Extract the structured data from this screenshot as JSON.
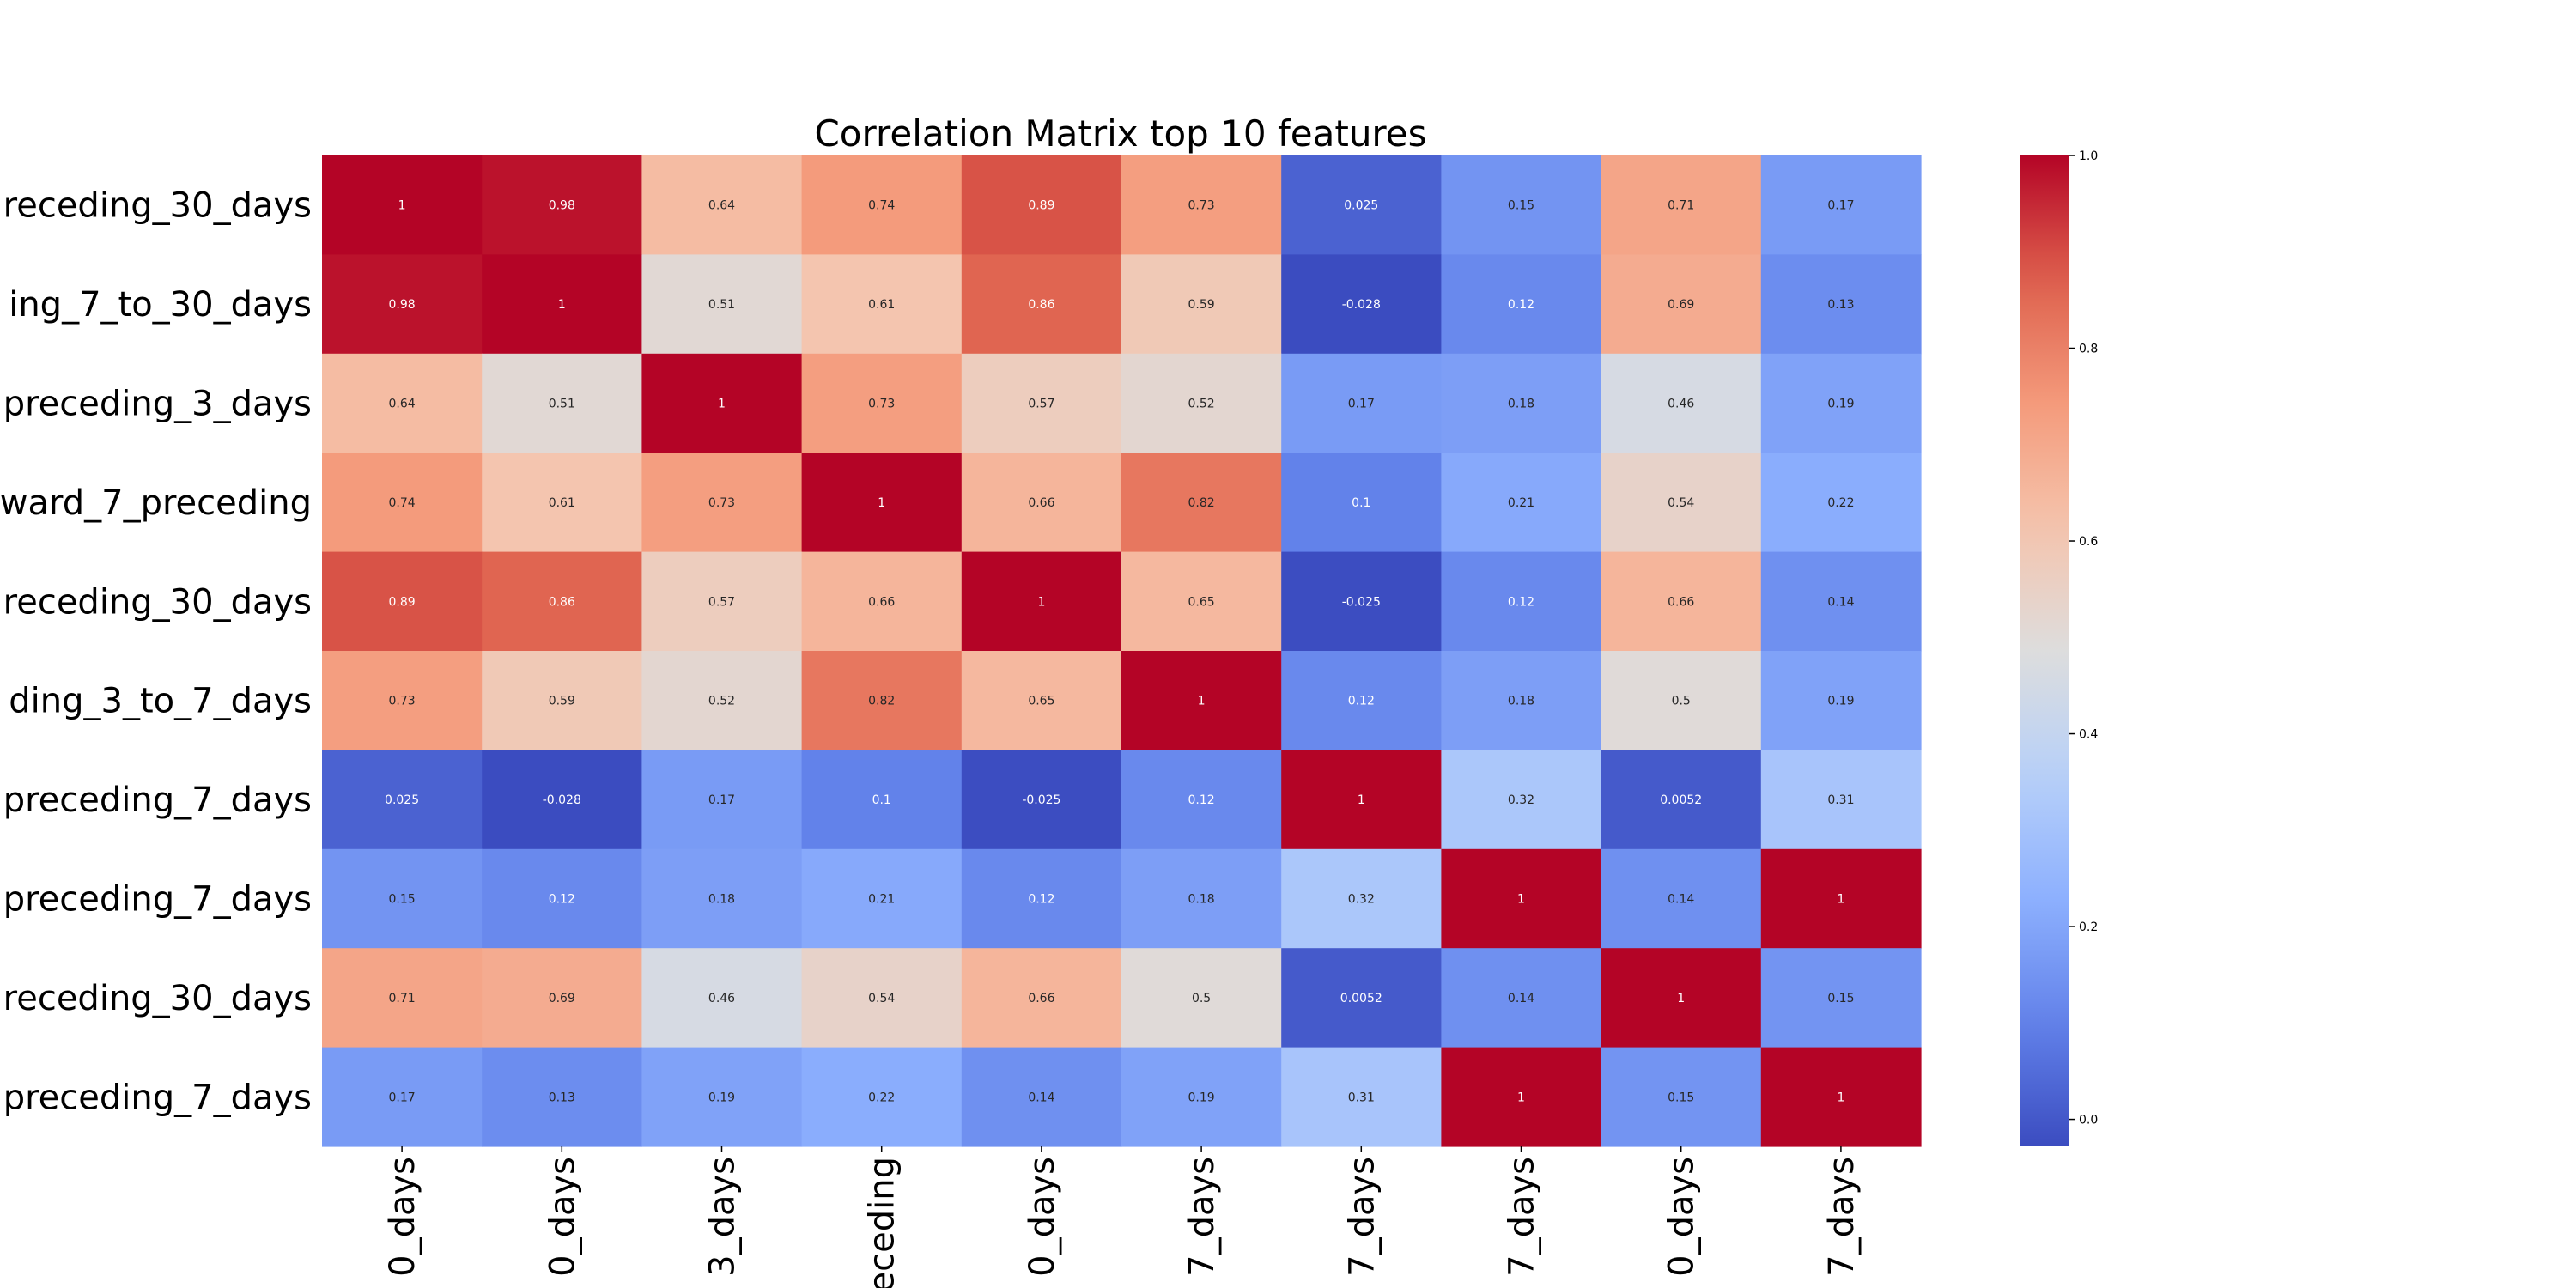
{
  "chart_data": {
    "type": "heatmap",
    "title": "Correlation Matrix top 10 features",
    "row_labels": [
      "receding_30_days",
      "ing_7_to_30_days",
      "preceding_3_days",
      "ward_7_preceding",
      "receding_30_days",
      "ding_3_to_7_days",
      "preceding_7_days",
      "preceding_7_days",
      "receding_30_days",
      "preceding_7_days"
    ],
    "col_labels": [
      "0_days",
      "0_days",
      "3_days",
      "eceding",
      "0_days",
      "7_days",
      "7_days",
      "7_days",
      "0_days",
      "7_days"
    ],
    "values": [
      [
        1,
        0.98,
        0.64,
        0.74,
        0.89,
        0.73,
        0.025,
        0.15,
        0.71,
        0.17
      ],
      [
        0.98,
        1,
        0.51,
        0.61,
        0.86,
        0.59,
        -0.028,
        0.12,
        0.69,
        0.13
      ],
      [
        0.64,
        0.51,
        1,
        0.73,
        0.57,
        0.52,
        0.17,
        0.18,
        0.46,
        0.19
      ],
      [
        0.74,
        0.61,
        0.73,
        1,
        0.66,
        0.82,
        0.1,
        0.21,
        0.54,
        0.22
      ],
      [
        0.89,
        0.86,
        0.57,
        0.66,
        1,
        0.65,
        -0.025,
        0.12,
        0.66,
        0.14
      ],
      [
        0.73,
        0.59,
        0.52,
        0.82,
        0.65,
        1,
        0.12,
        0.18,
        0.5,
        0.19
      ],
      [
        0.025,
        -0.028,
        0.17,
        0.1,
        -0.025,
        0.12,
        1,
        0.32,
        0.0052,
        0.31
      ],
      [
        0.15,
        0.12,
        0.18,
        0.21,
        0.12,
        0.18,
        0.32,
        1,
        0.14,
        1
      ],
      [
        0.71,
        0.69,
        0.46,
        0.54,
        0.66,
        0.5,
        0.0052,
        0.14,
        1,
        0.15
      ],
      [
        0.17,
        0.13,
        0.19,
        0.22,
        0.14,
        0.19,
        0.31,
        1,
        0.15,
        1
      ]
    ],
    "colorscale": "coolwarm",
    "vmin": -0.028,
    "vmax": 1.0,
    "colorbar_ticks": [
      "0.0",
      "0.2",
      "0.4",
      "0.6",
      "0.8",
      "1.0"
    ]
  }
}
